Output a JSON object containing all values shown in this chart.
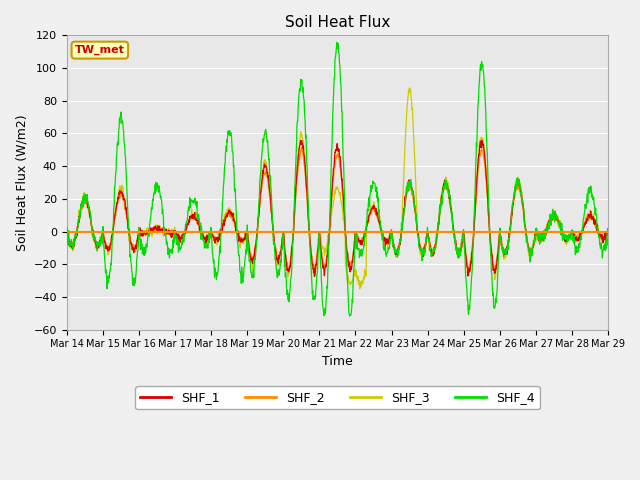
{
  "title": "Soil Heat Flux",
  "xlabel": "Time",
  "ylabel": "Soil Heat Flux (W/m2)",
  "ylim": [
    -60,
    120
  ],
  "yticks": [
    -60,
    -40,
    -20,
    0,
    20,
    40,
    60,
    80,
    100,
    120
  ],
  "series": [
    "SHF_1",
    "SHF_2",
    "SHF_3",
    "SHF_4"
  ],
  "colors": [
    "#dd0000",
    "#ff8c00",
    "#cccc00",
    "#00dd00"
  ],
  "fig_bg": "#f0f0f0",
  "plot_bg": "#e8e8e8",
  "annotation_text": "TW_met",
  "annotation_bg": "#ffffbb",
  "annotation_border": "#cc9900",
  "annotation_text_color": "#cc0000",
  "date_labels": [
    "Mar 14",
    "Mar 15",
    "Mar 16",
    "Mar 17",
    "Mar 18",
    "Mar 19",
    "Mar 20",
    "Mar 21",
    "Mar 22",
    "Mar 23",
    "Mar 24",
    "Mar 25",
    "Mar 26",
    "Mar 27",
    "Mar 28",
    "Mar 29"
  ],
  "n_days": 15,
  "points_per_day": 96,
  "day_peaks_shf1": [
    20,
    25,
    2,
    10,
    12,
    40,
    55,
    52,
    15,
    30,
    30,
    55,
    30,
    10,
    10
  ],
  "day_peaks_shf4": [
    20,
    70,
    28,
    20,
    62,
    60,
    92,
    115,
    30,
    30,
    30,
    103,
    30,
    10,
    25
  ]
}
